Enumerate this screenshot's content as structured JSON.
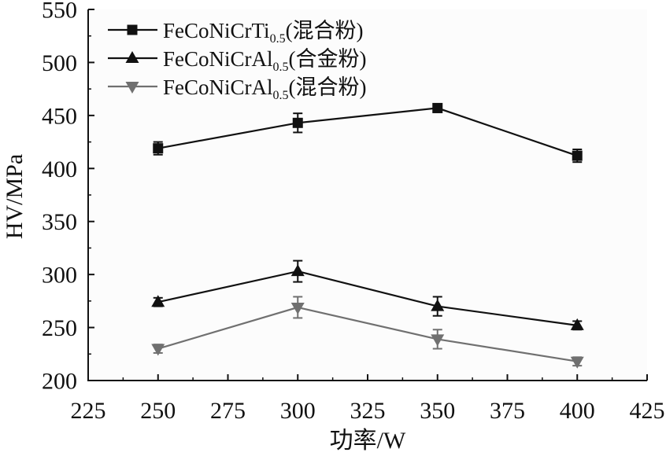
{
  "chart_data": {
    "type": "line",
    "xlabel": "功率/W",
    "ylabel": "HV/MPa",
    "xlim": [
      225,
      425
    ],
    "ylim": [
      200,
      550
    ],
    "xticks": [
      225,
      250,
      275,
      300,
      325,
      350,
      375,
      400,
      425
    ],
    "yticks": [
      200,
      250,
      300,
      350,
      400,
      450,
      500,
      550
    ],
    "grid": false,
    "legend": "top-left",
    "error_bars": true,
    "x": [
      250,
      300,
      350,
      400
    ],
    "series": [
      {
        "name": "FeCoNiCrTi0.5(混合粉)",
        "subscript": "0.5",
        "marker": "square",
        "color": "#111111",
        "values": [
          419,
          443,
          457,
          412
        ],
        "errors": [
          6,
          9,
          4,
          6
        ]
      },
      {
        "name": "FeCoNiCrAl0.5(合金粉)",
        "subscript": "0.5",
        "marker": "triangle-up",
        "color": "#111111",
        "values": [
          274,
          303,
          270,
          252
        ],
        "errors": [
          4,
          10,
          9,
          4
        ]
      },
      {
        "name": "FeCoNiCrAl0.5(混合粉)",
        "subscript": "0.5",
        "marker": "triangle-down",
        "color": "#707070",
        "values": [
          230,
          269,
          239,
          218
        ],
        "errors": [
          4,
          10,
          9,
          4
        ]
      }
    ]
  }
}
